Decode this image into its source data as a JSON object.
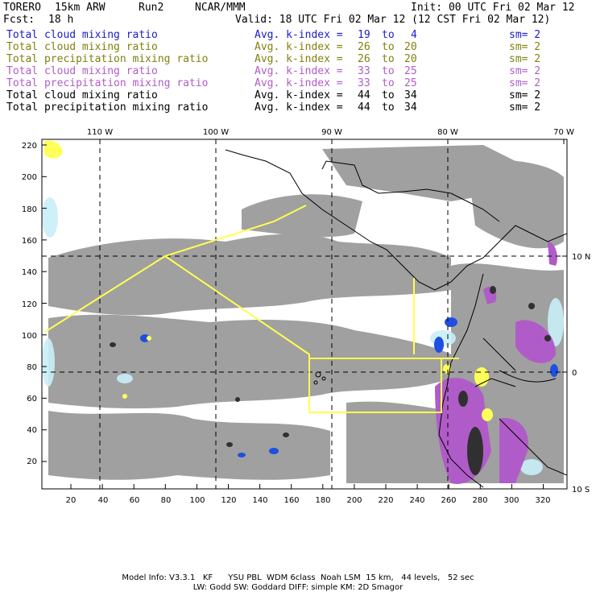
{
  "header": {
    "model": "TORERO",
    "resolution": "15km ARW",
    "run": "Run2",
    "org": "NCAR/MMM",
    "init": "Init: 00 UTC Fri 02 Mar 12",
    "fcst_label": "Fcst:",
    "fcst_value": "18 h",
    "valid": "Valid: 18 UTC Fri 02 Mar 12 (12 CST Fri 02 Mar 12)"
  },
  "legend": [
    {
      "field": "Total cloud mixing ratio",
      "stat": "Avg. k-index =",
      "k_from": "19",
      "to": "to",
      "k_to": "4",
      "sm": "sm= 2",
      "color": "#1a1acc"
    },
    {
      "field": "Total cloud mixing ratio",
      "stat": "Avg. k-index =",
      "k_from": "26",
      "to": "to",
      "k_to": "20",
      "sm": "sm= 2",
      "color": "#808010"
    },
    {
      "field": "Total precipitation mixing ratio",
      "stat": "Avg. k-index =",
      "k_from": "26",
      "to": "to",
      "k_to": "20",
      "sm": "sm= 2",
      "color": "#808010"
    },
    {
      "field": "Total cloud mixing ratio",
      "stat": "Avg. k-index =",
      "k_from": "33",
      "to": "to",
      "k_to": "25",
      "sm": "sm= 2",
      "color": "#b05cc8"
    },
    {
      "field": "Total precipitation mixing ratio",
      "stat": "Avg. k-index =",
      "k_from": "33",
      "to": "to",
      "k_to": "25",
      "sm": "sm= 2",
      "color": "#b05cc8"
    },
    {
      "field": "Total cloud mixing ratio",
      "stat": "Avg. k-index =",
      "k_from": "44",
      "to": "to",
      "k_to": "34",
      "sm": "sm= 2",
      "color": "#000000"
    },
    {
      "field": "Total precipitation mixing ratio",
      "stat": "Avg. k-index =",
      "k_from": "44",
      "to": "to",
      "k_to": "34",
      "sm": "sm= 2",
      "color": "#000000"
    }
  ],
  "map": {
    "lon_labels": [
      "110 W",
      "100 W",
      "90 W",
      "80 W",
      "70 W"
    ],
    "lat_labels": [
      "10 N",
      "0",
      "10 S"
    ],
    "y_ticks": [
      "220",
      "200",
      "180",
      "160",
      "140",
      "120",
      "100",
      "80",
      "60",
      "40",
      "20"
    ],
    "x_ticks": [
      "20",
      "40",
      "60",
      "80",
      "100",
      "120",
      "140",
      "160",
      "180",
      "200",
      "220",
      "240",
      "260",
      "280",
      "300",
      "320"
    ],
    "colors": {
      "gray": "#a0a0a0",
      "light_blue": "#c8eef8",
      "blue": "#1f4fe0",
      "purple": "#b05cc8",
      "yellow": "#ffff5a",
      "dark": "#303030",
      "route": "#ffff50"
    }
  },
  "footer": {
    "line1": "Model Info: V3.3.1   KF      YSU PBL  WDM 6class  Noah LSM  15 km,   44 levels,   52 sec",
    "line2": "LW: Godd SW: Goddard DIFF: simple KM: 2D Smagor"
  }
}
